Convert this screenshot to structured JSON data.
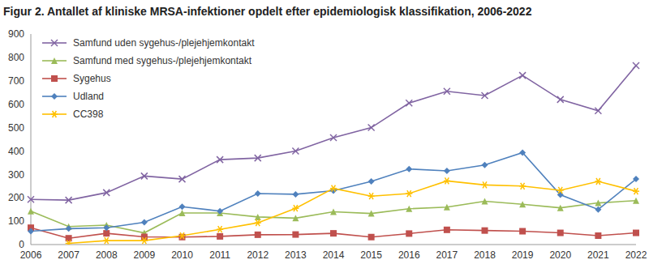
{
  "chart_data": {
    "type": "line",
    "title": "Figur 2. Antallet af kliniske MRSA-infektioner opdelt efter epidemiologisk klassifikation, 2006-2022",
    "categories": [
      "2006",
      "2007",
      "2008",
      "2009",
      "2010",
      "2011",
      "2012",
      "2013",
      "2014",
      "2015",
      "2016",
      "2017",
      "2018",
      "2019",
      "2020",
      "2021",
      "2022"
    ],
    "ylim": [
      0,
      900
    ],
    "yticks": [
      0,
      100,
      200,
      300,
      400,
      500,
      600,
      700,
      800,
      900
    ],
    "grid": false,
    "legend": "upper left",
    "series": [
      {
        "name": "Samfund uden sygehus-/plejehjemkontakt",
        "color": "#8064a2",
        "marker": "x",
        "values": [
          193,
          190,
          222,
          293,
          280,
          363,
          370,
          400,
          457,
          500,
          605,
          655,
          637,
          723,
          620,
          572,
          765
        ]
      },
      {
        "name": "Samfund med sygehus-/plejehjemkontakt",
        "color": "#9bbb59",
        "marker": "triangle",
        "values": [
          143,
          77,
          83,
          50,
          135,
          135,
          118,
          113,
          140,
          133,
          153,
          160,
          185,
          172,
          157,
          178,
          188
        ]
      },
      {
        "name": "Sygehus",
        "color": "#c0504d",
        "marker": "square",
        "values": [
          72,
          27,
          48,
          33,
          32,
          35,
          42,
          43,
          48,
          32,
          47,
          63,
          60,
          57,
          50,
          38,
          50
        ]
      },
      {
        "name": "Udland",
        "color": "#4f81bd",
        "marker": "diamond",
        "values": [
          57,
          68,
          72,
          95,
          162,
          143,
          218,
          215,
          230,
          270,
          323,
          315,
          340,
          393,
          213,
          150,
          280
        ]
      },
      {
        "name": "CC398",
        "color": "#ffc000",
        "marker": "star",
        "values": [
          null,
          5,
          17,
          17,
          38,
          65,
          93,
          155,
          240,
          207,
          218,
          272,
          255,
          250,
          232,
          270,
          228
        ]
      }
    ]
  }
}
